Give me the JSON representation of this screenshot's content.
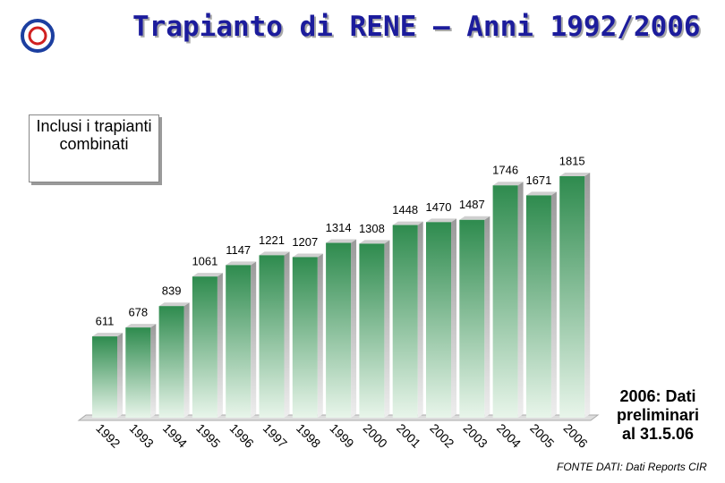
{
  "chart_data": {
    "type": "bar",
    "title": "Trapianto di RENE – Anni 1992/2006",
    "annotation": "Inclusi i trapianti combinati",
    "note": "2006: Dati preliminari al 31.5.06",
    "source": "FONTE DATI: Dati Reports CIR",
    "categories": [
      "1992",
      "1993",
      "1994",
      "1995",
      "1996",
      "1997",
      "1998",
      "1999",
      "2000",
      "2001",
      "2002",
      "2003",
      "2004",
      "2005",
      "2006"
    ],
    "values": [
      611,
      678,
      839,
      1061,
      1147,
      1221,
      1207,
      1314,
      1308,
      1448,
      1470,
      1487,
      1746,
      1671,
      1815
    ],
    "color": "#2e8b4e"
  }
}
